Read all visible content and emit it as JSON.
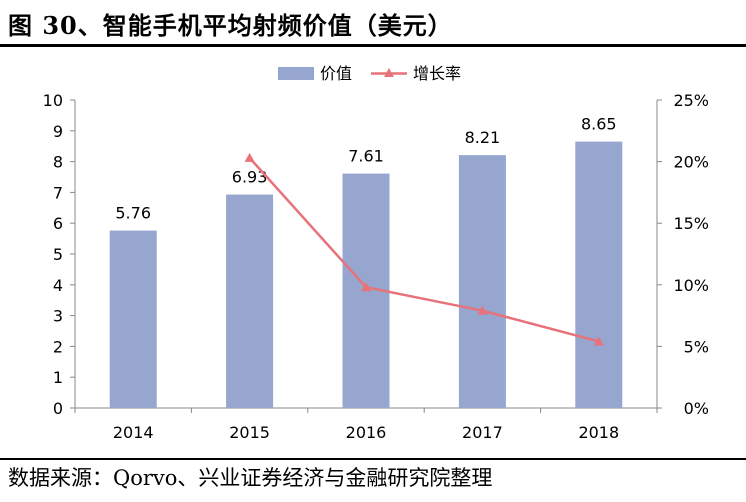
{
  "figure_title": "图 30、智能手机平均射频价值（美元）",
  "source": "数据来源：Qorvo、兴业证券经济与金融研究院整理",
  "colors": {
    "bar": "#97A6CF",
    "line": "#E8727A",
    "axis": "#888888"
  },
  "chart_data": {
    "type": "bar",
    "categories": [
      "2014",
      "2015",
      "2016",
      "2017",
      "2018"
    ],
    "series": [
      {
        "name": "价值",
        "type": "bar",
        "axis": "left",
        "values": [
          5.76,
          6.93,
          7.61,
          8.21,
          8.65
        ],
        "labels": [
          "5.76",
          "6.93",
          "7.61",
          "8.21",
          "8.65"
        ]
      },
      {
        "name": "增长率",
        "type": "line",
        "axis": "right",
        "values": [
          null,
          20.3,
          9.8,
          7.9,
          5.4
        ]
      }
    ],
    "ylim": [
      0,
      10
    ],
    "y_ticks": [
      "0",
      "1",
      "2",
      "3",
      "4",
      "5",
      "6",
      "7",
      "8",
      "9",
      "10"
    ],
    "y2lim": [
      0,
      25
    ],
    "y2_ticks": [
      "0%",
      "5%",
      "10%",
      "15%",
      "20%",
      "25%"
    ],
    "legend_position": "top-center",
    "grid": false
  }
}
